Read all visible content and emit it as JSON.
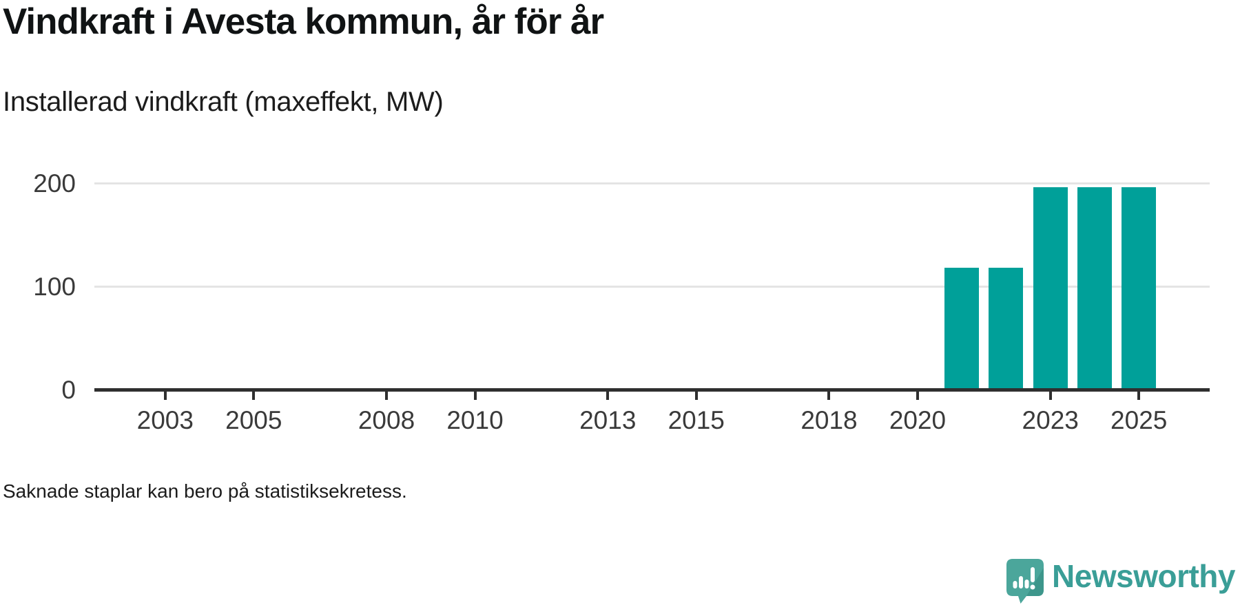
{
  "header": {
    "title": "Vindkraft i Avesta kommun, år för år",
    "subtitle": "Installerad vindkraft (maxeffekt, MW)"
  },
  "chart_data": {
    "type": "bar",
    "title": "Vindkraft i Avesta kommun, år för år",
    "subtitle": "Installerad vindkraft (maxeffekt, MW)",
    "unit": "MW",
    "x": [
      2021,
      2022,
      2023,
      2024,
      2025
    ],
    "values": [
      117,
      117,
      195,
      195,
      195
    ],
    "xticks": [
      2003,
      2005,
      2008,
      2010,
      2013,
      2015,
      2018,
      2020,
      2023,
      2025
    ],
    "yticks": [
      0,
      100,
      200
    ],
    "xlim": [
      2001.4,
      2026.6
    ],
    "ylim": [
      0,
      220
    ],
    "grid": "horizontal",
    "legend": "none",
    "annotation": "Saknade staplar kan bero på statistiksekretess."
  },
  "footer": {
    "note": "Saknade staplar kan bero på statistiksekretess.",
    "brand": "Newsworthy"
  },
  "colors": {
    "bar": "#00a099",
    "grid": "#e4e4e4",
    "axis": "#2f2f2f",
    "tick_text": "#3a3a3a",
    "title_text": "#101314",
    "logo_bubble": "#4ba69b",
    "logo_fold": "#3d968b",
    "wordmark": "#3a9e97"
  },
  "icons": {
    "logo": "newsworthy-speech-bubble-barchart-icon"
  }
}
